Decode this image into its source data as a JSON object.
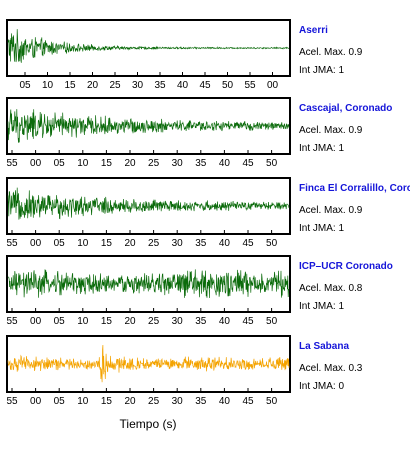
{
  "chart_data": {
    "type": "line",
    "xlabel": "Tiempo (s)",
    "panels": [
      {
        "station": "Aserri",
        "accel_label": "Acel. Max. 0.9",
        "jma_label": "Int JMA: 1",
        "color": "#0b6b0b",
        "ticks": [
          "05",
          "10",
          "15",
          "20",
          "25",
          "30",
          "35",
          "40",
          "45",
          "50",
          "55",
          "00"
        ],
        "envelope": {
          "kind": "decay",
          "peak": 0.95,
          "floor": 0.03
        }
      },
      {
        "station": "Cascajal, Coronado",
        "accel_label": "Acel. Max. 0.9",
        "jma_label": "Int JMA: 1",
        "color": "#0b6b0b",
        "ticks": [
          "55",
          "00",
          "05",
          "10",
          "15",
          "20",
          "25",
          "30",
          "35",
          "40",
          "45",
          "50"
        ],
        "envelope": {
          "kind": "slowdecay",
          "peak": 0.85,
          "floor": 0.12
        }
      },
      {
        "station": "Finca El Corralillo, Coronado",
        "accel_label": "Acel. Max. 0.9",
        "jma_label": "Int JMA: 1",
        "color": "#0b6b0b",
        "ticks": [
          "55",
          "00",
          "05",
          "10",
          "15",
          "20",
          "25",
          "30",
          "35",
          "40",
          "45",
          "50"
        ],
        "envelope": {
          "kind": "slowdecay",
          "peak": 0.8,
          "floor": 0.12
        }
      },
      {
        "station": "ICP–UCR Coronado",
        "accel_label": "Acel. Max. 0.8",
        "jma_label": "Int JMA: 1",
        "color": "#0b6b0b",
        "ticks": [
          "55",
          "00",
          "05",
          "10",
          "15",
          "20",
          "25",
          "30",
          "35",
          "40",
          "45",
          "50"
        ],
        "envelope": {
          "kind": "sustained",
          "peak": 0.7,
          "floor": 0.35
        }
      },
      {
        "station": "La Sabana",
        "accel_label": "Acel. Max. 0.3",
        "jma_label": "Int JMA: 0",
        "color": "#f4a300",
        "ticks": [
          "55",
          "00",
          "05",
          "10",
          "15",
          "20",
          "25",
          "30",
          "35",
          "40",
          "45",
          "50"
        ],
        "envelope": {
          "kind": "burst",
          "peak": 0.45,
          "floor": 0.3
        }
      }
    ]
  }
}
